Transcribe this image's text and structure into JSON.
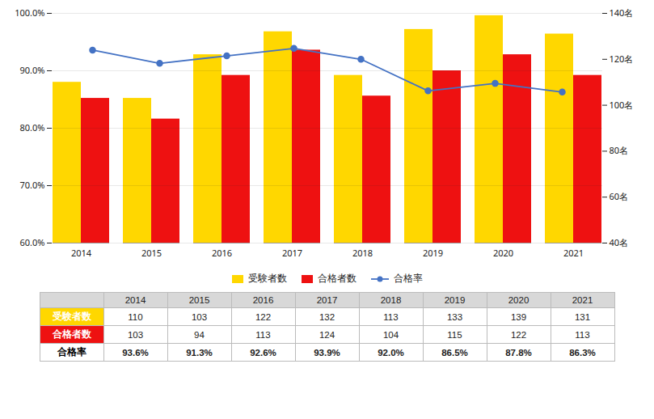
{
  "chart_data": {
    "type": "bar",
    "categories": [
      "2014",
      "2015",
      "2016",
      "2017",
      "2018",
      "2019",
      "2020",
      "2021"
    ],
    "series": [
      {
        "name": "受験者数",
        "type": "bar",
        "color": "#FFD700",
        "axis": "y2",
        "values": [
          110,
          103,
          122,
          132,
          113,
          133,
          139,
          131
        ]
      },
      {
        "name": "合格者数",
        "type": "bar",
        "color": "#EE1111",
        "axis": "y2",
        "values": [
          103,
          94,
          113,
          124,
          104,
          115,
          122,
          113
        ]
      },
      {
        "name": "合格率",
        "type": "line",
        "color": "#4472C4",
        "marker": "circle",
        "values": [
          93.6,
          91.3,
          92.6,
          93.9,
          92.0,
          86.5,
          87.8,
          86.3
        ],
        "value_labels": [
          "93.6%",
          "91.3%",
          "92.6%",
          "93.9%",
          "92.0%",
          "86.5%",
          "87.8%",
          "86.3%"
        ]
      }
    ],
    "ylim": [
      60.0,
      100.0
    ],
    "yticks": [
      {
        "value": 60.0,
        "label": "60.0%"
      },
      {
        "value": 70.0,
        "label": "70.0%"
      },
      {
        "value": 80.0,
        "label": "80.0%"
      },
      {
        "value": 90.0,
        "label": "90.0%"
      },
      {
        "value": 100.0,
        "label": "100.0%"
      }
    ],
    "y2lim": [
      40,
      140
    ],
    "y2ticks": [
      {
        "value": 40,
        "label": "40名"
      },
      {
        "value": 60,
        "label": "60名"
      },
      {
        "value": 80,
        "label": "80名"
      },
      {
        "value": 100,
        "label": "100名"
      },
      {
        "value": 120,
        "label": "120名"
      },
      {
        "value": 140,
        "label": "140名"
      }
    ],
    "grid": true,
    "legend": "bottom"
  }
}
